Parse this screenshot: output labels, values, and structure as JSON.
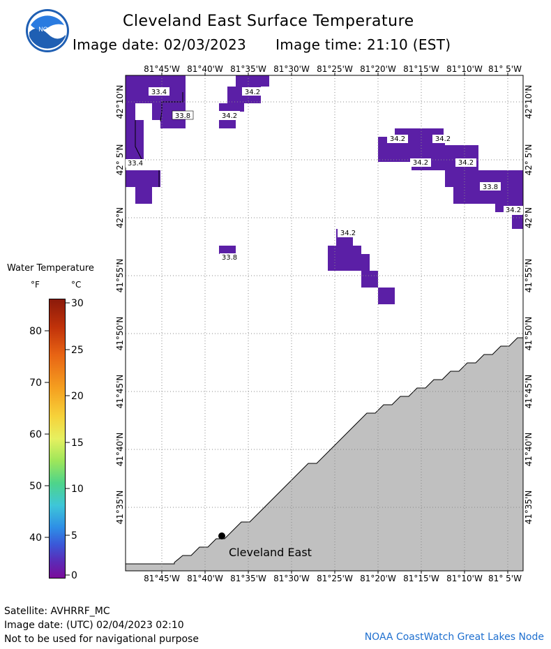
{
  "header": {
    "title": "Cleveland East Surface Temperature",
    "image_date_label": "Image date: 02/03/2023",
    "image_time_label": "Image time: 21:10 (EST)"
  },
  "logo": {
    "text": "NOAA",
    "name": "noaa-logo"
  },
  "map": {
    "lon_labels": [
      "81°45'W",
      "81°40'W",
      "81°35'W",
      "81°30'W",
      "81°25'W",
      "81°20'W",
      "81°15'W",
      "81°10'W",
      "81° 5'W"
    ],
    "lat_labels": [
      "42°10'N",
      "42° 5'N",
      "42°N",
      "41°55'N",
      "41°50'N",
      "41°45'N",
      "41°40'N",
      "41°35'N"
    ],
    "station_label": "Cleveland East",
    "temperature_labels": [
      "33.4",
      "34.2",
      "33.8",
      "34.2",
      "33.4",
      "34.2",
      "34.2",
      "34.2",
      "34.2",
      "33.8",
      "34.2",
      "34.2",
      "33.8"
    ],
    "colors": {
      "water_cell": "#5b1fa6",
      "land": "#c0c0c0",
      "grid": "#888888"
    }
  },
  "legend": {
    "title": "Water Temperature",
    "unit_f": "°F",
    "unit_c": "°C",
    "f_ticks": [
      "80",
      "70",
      "60",
      "50",
      "40"
    ],
    "c_ticks": [
      "30",
      "25",
      "20",
      "15",
      "10",
      "5",
      "0"
    ]
  },
  "footer": {
    "satellite": "Satellite: AVHRRF_MC",
    "utc_date": "Image date: (UTC) 02/04/2023  02:10",
    "disclaimer": "Not to be used for navigational purpose",
    "credit": "NOAA CoastWatch Great Lakes Node"
  }
}
